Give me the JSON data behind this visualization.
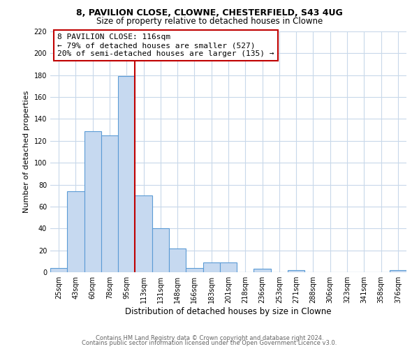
{
  "title": "8, PAVILION CLOSE, CLOWNE, CHESTERFIELD, S43 4UG",
  "subtitle": "Size of property relative to detached houses in Clowne",
  "xlabel": "Distribution of detached houses by size in Clowne",
  "ylabel": "Number of detached properties",
  "bin_labels": [
    "25sqm",
    "43sqm",
    "60sqm",
    "78sqm",
    "95sqm",
    "113sqm",
    "131sqm",
    "148sqm",
    "166sqm",
    "183sqm",
    "201sqm",
    "218sqm",
    "236sqm",
    "253sqm",
    "271sqm",
    "288sqm",
    "306sqm",
    "323sqm",
    "341sqm",
    "358sqm",
    "376sqm"
  ],
  "bin_values": [
    4,
    74,
    129,
    125,
    179,
    70,
    40,
    22,
    4,
    9,
    9,
    0,
    3,
    0,
    2,
    0,
    0,
    0,
    0,
    0,
    2
  ],
  "bar_color": "#c6d9f0",
  "bar_edge_color": "#5b9bd5",
  "vline_color": "#c00000",
  "annotation_line1": "8 PAVILION CLOSE: 116sqm",
  "annotation_line2": "← 79% of detached houses are smaller (527)",
  "annotation_line3": "20% of semi-detached houses are larger (135) →",
  "annotation_box_color": "#ffffff",
  "annotation_box_edge_color": "#c00000",
  "ylim": [
    0,
    220
  ],
  "yticks": [
    0,
    20,
    40,
    60,
    80,
    100,
    120,
    140,
    160,
    180,
    200,
    220
  ],
  "footer_line1": "Contains HM Land Registry data © Crown copyright and database right 2024.",
  "footer_line2": "Contains public sector information licensed under the Open Government Licence v3.0.",
  "background_color": "#ffffff",
  "grid_color": "#c8d8ea"
}
